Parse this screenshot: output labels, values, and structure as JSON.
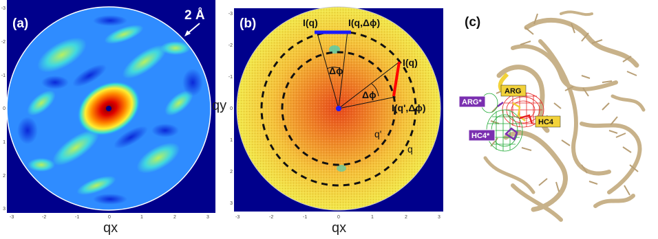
{
  "panel_a": {
    "label": "(a)",
    "scale_label": "2 Å",
    "x_axis_label": "qx",
    "x_ticks": [
      "-3",
      "-2",
      "-1",
      "0",
      "1",
      "2",
      "3"
    ],
    "y_ticks": [
      "-3",
      "-2",
      "-1",
      "0",
      "1",
      "2",
      "3"
    ]
  },
  "panel_b": {
    "label": "(b)",
    "y_axis_label": "qy",
    "x_axis_label": "qx",
    "x_ticks": [
      "-3",
      "-2",
      "-1",
      "0",
      "1",
      "2",
      "3"
    ],
    "y_ticks": [
      "-3",
      "-2",
      "-1",
      "0",
      "1",
      "2",
      "3"
    ],
    "annotations": {
      "i_q_top": "I(q)",
      "i_q_dphi_top": "I(q,Δϕ)",
      "dphi_top": "Δϕ",
      "i_q_right": "I(q)",
      "dphi_right": "Δϕ",
      "i_qprime_dphi": "I(q',Δϕ)",
      "q_prime": "q'",
      "q": "q"
    }
  },
  "panel_c": {
    "label": "(c)",
    "labels": {
      "arg_yellow": "ARG",
      "arg_purple": "ARG*",
      "hc4_yellow": "HC4",
      "hc4_purple": "HC4*"
    }
  },
  "colors": {
    "background_blue": "#00008c",
    "accent_red": "#ff0000",
    "accent_blue_bar": "#1a1aff",
    "label_yellow": "#f2d23a",
    "label_purple": "#7a2fb0",
    "protein_tan": "#c8b28a"
  }
}
